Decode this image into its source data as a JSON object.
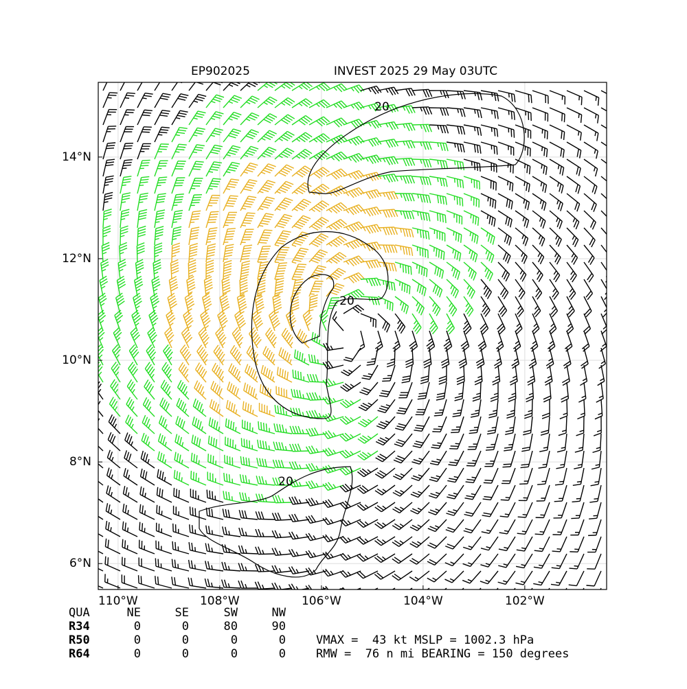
{
  "chart_data": {
    "type": "wind-barb-map",
    "title_left": "EP902025",
    "title_right": "INVEST 2025 29 May 03UTC",
    "xlim": [
      -110.39,
      -100.39
    ],
    "ylim": [
      5.49,
      15.47
    ],
    "xticks": [
      {
        "value": -110,
        "label": "110°W"
      },
      {
        "value": -108,
        "label": "108°W"
      },
      {
        "value": -106,
        "label": "106°W"
      },
      {
        "value": -104,
        "label": "104°W"
      },
      {
        "value": -102,
        "label": "102°W"
      }
    ],
    "yticks": [
      {
        "value": 6,
        "label": "6°N"
      },
      {
        "value": 8,
        "label": "8°N"
      },
      {
        "value": 10,
        "label": "10°N"
      },
      {
        "value": 12,
        "label": "12°N"
      },
      {
        "value": 14,
        "label": "14°N"
      }
    ],
    "grid": true,
    "contour_labels": [
      "20",
      "20",
      "20"
    ]
  },
  "radii_table": {
    "header": [
      "QUA",
      "NE",
      "SE",
      "SW",
      "NW"
    ],
    "rows": [
      [
        "R34",
        "0",
        "0",
        "80",
        "90"
      ],
      [
        "R50",
        "0",
        "0",
        "0",
        "0"
      ],
      [
        "R64",
        "0",
        "0",
        "0",
        "0"
      ]
    ]
  },
  "info_lines": [
    "VMAX =  43 kt MSLP = 1002.3 hPa",
    "RMW =  76 n mi BEARING = 150 degrees"
  ]
}
